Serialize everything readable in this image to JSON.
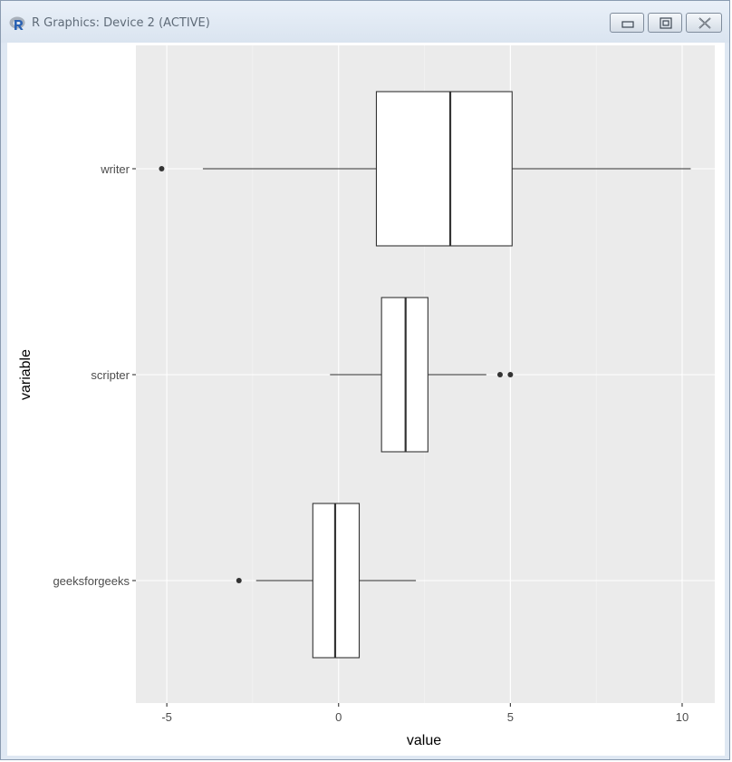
{
  "window": {
    "title": "R Graphics: Device 2 (ACTIVE)",
    "icons": [
      "r-logo-icon",
      "minimize-icon",
      "maximize-icon",
      "close-icon"
    ]
  },
  "chart_data": {
    "type": "boxplot",
    "orientation": "horizontal",
    "xlabel": "value",
    "ylabel": "variable",
    "xlim": [
      -5.9,
      10.95
    ],
    "x_ticks": [
      -5,
      0,
      5,
      10
    ],
    "x_tick_labels": [
      "-5",
      "0",
      "5",
      "10"
    ],
    "grid": true,
    "panel_background": "#ebebeb",
    "box_fill": "#ffffff",
    "line_color": "#333333",
    "categories": [
      "writer",
      "scripter",
      "geeksforgeeks"
    ],
    "boxes": [
      {
        "name": "writer",
        "lower_whisker": -3.95,
        "q1": 1.1,
        "median": 3.25,
        "q3": 5.05,
        "upper_whisker": 10.25,
        "outliers": [
          -5.15
        ]
      },
      {
        "name": "scripter",
        "lower_whisker": -0.25,
        "q1": 1.25,
        "median": 1.95,
        "q3": 2.6,
        "upper_whisker": 4.3,
        "outliers": [
          4.7,
          5.0
        ]
      },
      {
        "name": "geeksforgeeks",
        "lower_whisker": -2.4,
        "q1": -0.75,
        "median": -0.1,
        "q3": 0.6,
        "upper_whisker": 2.25,
        "outliers": [
          -2.9
        ]
      }
    ]
  }
}
